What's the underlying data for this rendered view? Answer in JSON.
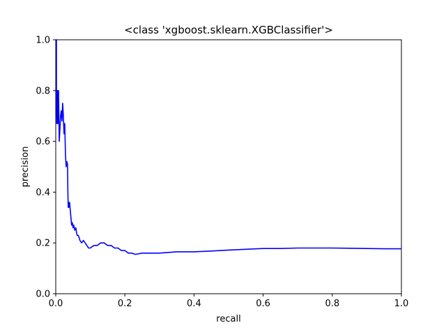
{
  "chart_data": {
    "type": "line",
    "title": "<class 'xgboost.sklearn.XGBClassifier'>",
    "xlabel": "recall",
    "ylabel": "precision",
    "xlim": [
      0.0,
      1.0
    ],
    "ylim": [
      0.0,
      1.0
    ],
    "x_ticks": [
      0.0,
      0.2,
      0.4,
      0.6,
      0.8,
      1.0
    ],
    "y_ticks": [
      0.0,
      0.2,
      0.4,
      0.6,
      0.8,
      1.0
    ],
    "x_tick_labels": [
      "0.0",
      "0.2",
      "0.4",
      "0.6",
      "0.8",
      "1.0"
    ],
    "y_tick_labels": [
      "0.0",
      "0.2",
      "0.4",
      "0.6",
      "0.8",
      "1.0"
    ],
    "grid": false,
    "series": [
      {
        "color": "#0000ff",
        "x": [
          0.0,
          0.002,
          0.002,
          0.003,
          0.003,
          0.005,
          0.006,
          0.007,
          0.008,
          0.009,
          0.01,
          0.012,
          0.014,
          0.016,
          0.018,
          0.02,
          0.022,
          0.024,
          0.026,
          0.028,
          0.03,
          0.032,
          0.034,
          0.035,
          0.036,
          0.037,
          0.038,
          0.039,
          0.04,
          0.042,
          0.044,
          0.046,
          0.048,
          0.05,
          0.052,
          0.055,
          0.058,
          0.06,
          0.062,
          0.065,
          0.068,
          0.07,
          0.075,
          0.08,
          0.085,
          0.09,
          0.095,
          0.1,
          0.11,
          0.12,
          0.13,
          0.14,
          0.15,
          0.16,
          0.17,
          0.18,
          0.19,
          0.2,
          0.21,
          0.22,
          0.23,
          0.25,
          0.27,
          0.3,
          0.35,
          0.4,
          0.45,
          0.5,
          0.55,
          0.6,
          0.65,
          0.7,
          0.75,
          0.8,
          0.85,
          0.9,
          0.95,
          1.0
        ],
        "y": [
          1.0,
          1.0,
          0.8,
          0.67,
          0.75,
          0.8,
          0.67,
          0.7,
          0.8,
          0.7,
          0.6,
          0.65,
          0.7,
          0.72,
          0.68,
          0.75,
          0.7,
          0.63,
          0.67,
          0.55,
          0.5,
          0.52,
          0.51,
          0.4,
          0.34,
          0.36,
          0.34,
          0.35,
          0.36,
          0.33,
          0.3,
          0.27,
          0.28,
          0.26,
          0.27,
          0.25,
          0.26,
          0.24,
          0.23,
          0.23,
          0.22,
          0.21,
          0.2,
          0.21,
          0.2,
          0.19,
          0.18,
          0.18,
          0.19,
          0.19,
          0.2,
          0.2,
          0.19,
          0.19,
          0.18,
          0.18,
          0.17,
          0.17,
          0.16,
          0.16,
          0.155,
          0.16,
          0.16,
          0.16,
          0.165,
          0.165,
          0.168,
          0.172,
          0.175,
          0.178,
          0.178,
          0.18,
          0.18,
          0.18,
          0.179,
          0.178,
          0.177,
          0.177
        ]
      }
    ]
  }
}
